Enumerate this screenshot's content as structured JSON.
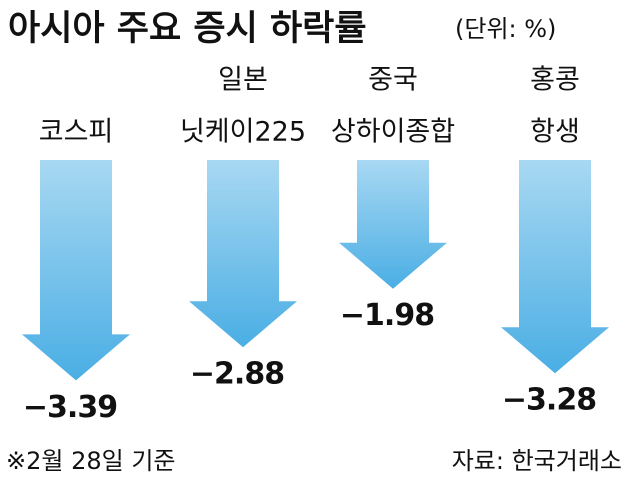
{
  "chart_data": {
    "type": "arrow",
    "title": "아시아 주요 증시 하락률",
    "subtitle": "(단위: %)",
    "categories": [
      [
        "코스피"
      ],
      [
        "일본",
        "닛케이225"
      ],
      [
        "중국",
        "상하이종합"
      ],
      [
        "홍콩",
        "항생"
      ]
    ],
    "values": [
      -3.39,
      -2.88,
      -1.98,
      -3.28
    ],
    "value_labels": [
      "−3.39",
      "−2.88",
      "−1.98",
      "−3.28"
    ],
    "color": "#4aaee4",
    "note": "※2월 28일 기준",
    "source": "자료: 한국거래소"
  }
}
